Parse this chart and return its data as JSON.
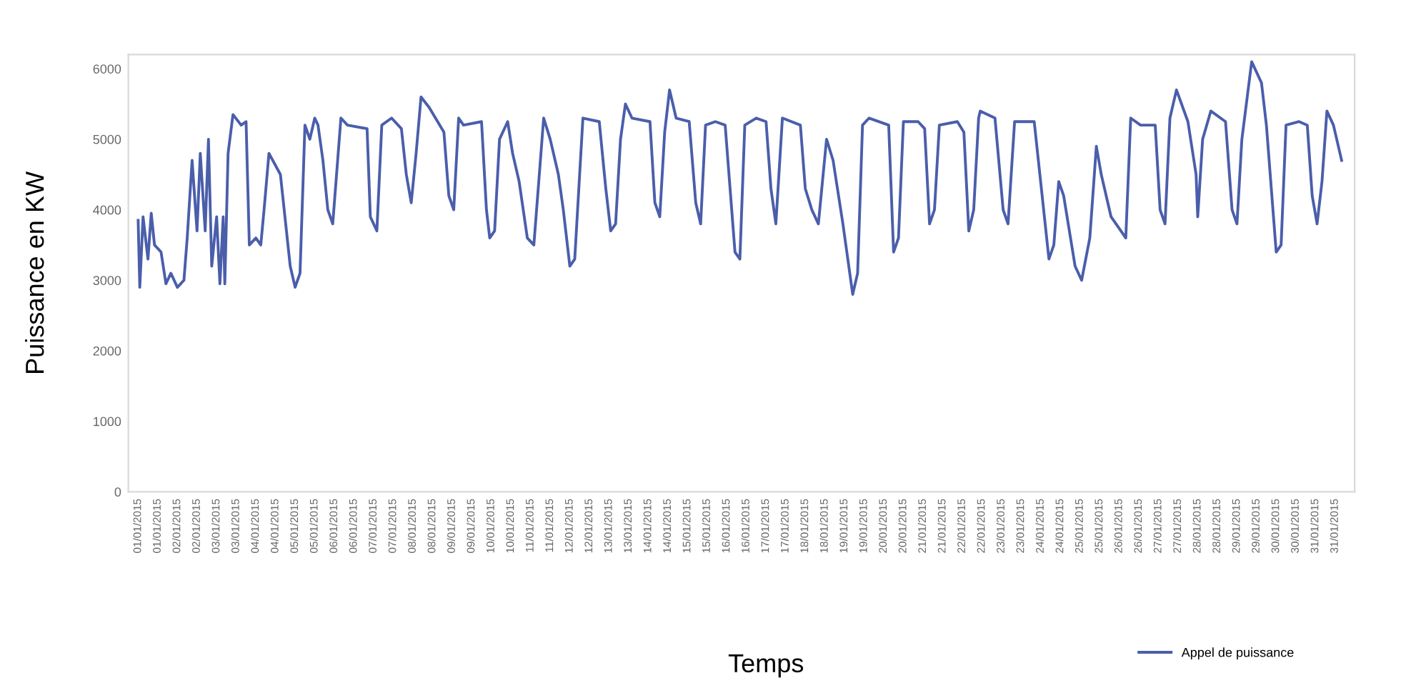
{
  "chart_data": {
    "type": "line",
    "xlabel": "Temps",
    "ylabel": "Puissance en KW",
    "xlim": [
      "2014-12-31T18:00",
      "2015-02-01T00:00"
    ],
    "ylim": [
      0,
      6200
    ],
    "yticks": [
      0,
      1000,
      2000,
      3000,
      4000,
      5000,
      6000
    ],
    "xticks": [
      {
        "value": "2015-01-01T00:00",
        "label": "01/01/2015"
      },
      {
        "value": "2015-01-01T12:00",
        "label": "01/01/2015"
      },
      {
        "value": "2015-01-02T00:00",
        "label": "02/01/2015"
      },
      {
        "value": "2015-01-02T12:00",
        "label": "02/01/2015"
      },
      {
        "value": "2015-01-03T00:00",
        "label": "03/01/2015"
      },
      {
        "value": "2015-01-03T12:00",
        "label": "03/01/2015"
      },
      {
        "value": "2015-01-04T00:00",
        "label": "04/01/2015"
      },
      {
        "value": "2015-01-04T12:00",
        "label": "04/01/2015"
      },
      {
        "value": "2015-01-05T00:00",
        "label": "05/01/2015"
      },
      {
        "value": "2015-01-05T12:00",
        "label": "05/01/2015"
      },
      {
        "value": "2015-01-06T00:00",
        "label": "06/01/2015"
      },
      {
        "value": "2015-01-06T12:00",
        "label": "06/01/2015"
      },
      {
        "value": "2015-01-07T00:00",
        "label": "07/01/2015"
      },
      {
        "value": "2015-01-07T12:00",
        "label": "07/01/2015"
      },
      {
        "value": "2015-01-08T00:00",
        "label": "08/01/2015"
      },
      {
        "value": "2015-01-08T12:00",
        "label": "08/01/2015"
      },
      {
        "value": "2015-01-09T00:00",
        "label": "09/01/2015"
      },
      {
        "value": "2015-01-09T12:00",
        "label": "09/01/2015"
      },
      {
        "value": "2015-01-10T00:00",
        "label": "10/01/2015"
      },
      {
        "value": "2015-01-10T12:00",
        "label": "10/01/2015"
      },
      {
        "value": "2015-01-11T00:00",
        "label": "11/01/2015"
      },
      {
        "value": "2015-01-11T12:00",
        "label": "11/01/2015"
      },
      {
        "value": "2015-01-12T00:00",
        "label": "12/01/2015"
      },
      {
        "value": "2015-01-12T12:00",
        "label": "12/01/2015"
      },
      {
        "value": "2015-01-13T00:00",
        "label": "13/01/2015"
      },
      {
        "value": "2015-01-13T12:00",
        "label": "13/01/2015"
      },
      {
        "value": "2015-01-14T00:00",
        "label": "14/01/2015"
      },
      {
        "value": "2015-01-14T12:00",
        "label": "14/01/2015"
      },
      {
        "value": "2015-01-15T00:00",
        "label": "15/01/2015"
      },
      {
        "value": "2015-01-15T12:00",
        "label": "15/01/2015"
      },
      {
        "value": "2015-01-16T00:00",
        "label": "16/01/2015"
      },
      {
        "value": "2015-01-16T12:00",
        "label": "16/01/2015"
      },
      {
        "value": "2015-01-17T00:00",
        "label": "17/01/2015"
      },
      {
        "value": "2015-01-17T12:00",
        "label": "17/01/2015"
      },
      {
        "value": "2015-01-18T00:00",
        "label": "18/01/2015"
      },
      {
        "value": "2015-01-18T12:00",
        "label": "18/01/2015"
      },
      {
        "value": "2015-01-19T00:00",
        "label": "19/01/2015"
      },
      {
        "value": "2015-01-19T12:00",
        "label": "19/01/2015"
      },
      {
        "value": "2015-01-20T00:00",
        "label": "20/01/2015"
      },
      {
        "value": "2015-01-20T12:00",
        "label": "20/01/2015"
      },
      {
        "value": "2015-01-21T00:00",
        "label": "21/01/2015"
      },
      {
        "value": "2015-01-21T12:00",
        "label": "21/01/2015"
      },
      {
        "value": "2015-01-22T00:00",
        "label": "22/01/2015"
      },
      {
        "value": "2015-01-22T12:00",
        "label": "22/01/2015"
      },
      {
        "value": "2015-01-23T00:00",
        "label": "23/01/2015"
      },
      {
        "value": "2015-01-23T12:00",
        "label": "23/01/2015"
      },
      {
        "value": "2015-01-24T00:00",
        "label": "24/01/2015"
      },
      {
        "value": "2015-01-24T12:00",
        "label": "24/01/2015"
      },
      {
        "value": "2015-01-25T00:00",
        "label": "25/01/2015"
      },
      {
        "value": "2015-01-25T12:00",
        "label": "25/01/2015"
      },
      {
        "value": "2015-01-26T00:00",
        "label": "26/01/2015"
      },
      {
        "value": "2015-01-26T12:00",
        "label": "26/01/2015"
      },
      {
        "value": "2015-01-27T00:00",
        "label": "27/01/2015"
      },
      {
        "value": "2015-01-27T12:00",
        "label": "27/01/2015"
      },
      {
        "value": "2015-01-28T00:00",
        "label": "28/01/2015"
      },
      {
        "value": "2015-01-28T12:00",
        "label": "28/01/2015"
      },
      {
        "value": "2015-01-29T00:00",
        "label": "29/01/2015"
      },
      {
        "value": "2015-01-29T12:00",
        "label": "29/01/2015"
      },
      {
        "value": "2015-01-30T00:00",
        "label": "30/01/2015"
      },
      {
        "value": "2015-01-30T12:00",
        "label": "30/01/2015"
      },
      {
        "value": "2015-01-31T00:00",
        "label": "31/01/2015"
      },
      {
        "value": "2015-01-31T12:00",
        "label": "31/01/2015"
      }
    ],
    "grid": false,
    "legend": "bottom right",
    "marker": "none",
    "line_style": "solid",
    "series": [
      {
        "name": "Appel de puissance",
        "color": "#4a5eab",
        "x": [
          "2015-01-01T00:00",
          "2015-01-01T01:00",
          "2015-01-01T03:00",
          "2015-01-01T06:00",
          "2015-01-01T08:00",
          "2015-01-01T10:00",
          "2015-01-01T14:00",
          "2015-01-01T17:00",
          "2015-01-01T20:00",
          "2015-01-02T00:00",
          "2015-01-02T04:00",
          "2015-01-02T06:00",
          "2015-01-02T09:00",
          "2015-01-02T12:00",
          "2015-01-02T14:00",
          "2015-01-02T17:00",
          "2015-01-02T19:00",
          "2015-01-02T21:00",
          "2015-01-03T00:00",
          "2015-01-03T02:00",
          "2015-01-03T04:00",
          "2015-01-03T05:00",
          "2015-01-03T07:00",
          "2015-01-03T10:00",
          "2015-01-03T15:00",
          "2015-01-03T18:00",
          "2015-01-03T20:00",
          "2015-01-04T00:00",
          "2015-01-04T03:00",
          "2015-01-04T05:00",
          "2015-01-04T08:00",
          "2015-01-04T15:00",
          "2015-01-04T21:00",
          "2015-01-05T00:00",
          "2015-01-05T03:00",
          "2015-01-05T06:00",
          "2015-01-05T09:00",
          "2015-01-05T12:00",
          "2015-01-05T14:00",
          "2015-01-05T17:00",
          "2015-01-05T20:00",
          "2015-01-05T23:00",
          "2015-01-06T04:00",
          "2015-01-06T08:00",
          "2015-01-06T20:00",
          "2015-01-06T22:00",
          "2015-01-07T02:00",
          "2015-01-07T05:00",
          "2015-01-07T11:00",
          "2015-01-07T17:00",
          "2015-01-07T20:00",
          "2015-01-07T23:00",
          "2015-01-08T02:00",
          "2015-01-08T05:00",
          "2015-01-08T10:00",
          "2015-01-08T19:00",
          "2015-01-08T22:00",
          "2015-01-09T01:00",
          "2015-01-09T04:00",
          "2015-01-09T07:00",
          "2015-01-09T18:00",
          "2015-01-09T21:00",
          "2015-01-09T23:00",
          "2015-01-10T02:00",
          "2015-01-10T05:00",
          "2015-01-10T10:00",
          "2015-01-10T13:00",
          "2015-01-10T17:00",
          "2015-01-10T22:00",
          "2015-01-11T02:00",
          "2015-01-11T08:00",
          "2015-01-11T12:00",
          "2015-01-11T17:00",
          "2015-01-11T20:00",
          "2015-01-12T00:00",
          "2015-01-12T03:00",
          "2015-01-12T08:00",
          "2015-01-12T18:00",
          "2015-01-12T22:00",
          "2015-01-13T01:00",
          "2015-01-13T04:00",
          "2015-01-13T07:00",
          "2015-01-13T10:00",
          "2015-01-13T14:00",
          "2015-01-14T01:00",
          "2015-01-14T04:00",
          "2015-01-14T07:00",
          "2015-01-14T10:00",
          "2015-01-14T13:00",
          "2015-01-14T17:00",
          "2015-01-15T01:00",
          "2015-01-15T05:00",
          "2015-01-15T08:00",
          "2015-01-15T11:00",
          "2015-01-15T17:00",
          "2015-01-15T23:00",
          "2015-01-16T05:00",
          "2015-01-16T08:00",
          "2015-01-16T11:00",
          "2015-01-16T18:00",
          "2015-01-17T00:00",
          "2015-01-17T03:00",
          "2015-01-17T06:00",
          "2015-01-17T10:00",
          "2015-01-17T21:00",
          "2015-01-18T00:00",
          "2015-01-18T04:00",
          "2015-01-18T08:00",
          "2015-01-18T13:00",
          "2015-01-18T17:00",
          "2015-01-18T23:00",
          "2015-01-19T05:00",
          "2015-01-19T08:00",
          "2015-01-19T11:00",
          "2015-01-19T15:00",
          "2015-01-20T03:00",
          "2015-01-20T06:00",
          "2015-01-20T09:00",
          "2015-01-20T12:00",
          "2015-01-20T21:00",
          "2015-01-21T01:00",
          "2015-01-21T04:00",
          "2015-01-21T07:00",
          "2015-01-21T10:00",
          "2015-01-21T21:00",
          "2015-01-22T01:00",
          "2015-01-22T04:00",
          "2015-01-22T07:00",
          "2015-01-22T10:00",
          "2015-01-22T11:00",
          "2015-01-22T20:00",
          "2015-01-23T01:00",
          "2015-01-23T04:00",
          "2015-01-23T08:00",
          "2015-01-23T20:00",
          "2015-01-23T23:00",
          "2015-01-24T05:00",
          "2015-01-24T08:00",
          "2015-01-24T11:00",
          "2015-01-24T14:00",
          "2015-01-24T21:00",
          "2015-01-25T01:00",
          "2015-01-25T06:00",
          "2015-01-25T10:00",
          "2015-01-25T13:00",
          "2015-01-25T19:00",
          "2015-01-26T01:00",
          "2015-01-26T04:00",
          "2015-01-26T07:00",
          "2015-01-26T13:00",
          "2015-01-26T22:00",
          "2015-01-27T01:00",
          "2015-01-27T04:00",
          "2015-01-27T07:00",
          "2015-01-27T11:00",
          "2015-01-27T18:00",
          "2015-01-27T23:00",
          "2015-01-28T00:00",
          "2015-01-28T03:00",
          "2015-01-28T08:00",
          "2015-01-28T17:00",
          "2015-01-28T21:00",
          "2015-01-29T00:00",
          "2015-01-29T03:00",
          "2015-01-29T09:00",
          "2015-01-29T15:00",
          "2015-01-29T18:00",
          "2015-01-30T00:00",
          "2015-01-30T03:00",
          "2015-01-30T06:00",
          "2015-01-30T14:00",
          "2015-01-30T19:00",
          "2015-01-30T22:00",
          "2015-01-31T01:00",
          "2015-01-31T04:00",
          "2015-01-31T07:00",
          "2015-01-31T11:00",
          "2015-01-31T16:00"
        ],
        "values": [
          3850,
          2900,
          3900,
          3300,
          3950,
          3500,
          3400,
          2950,
          3100,
          2900,
          3000,
          3600,
          4700,
          3700,
          4800,
          3700,
          5000,
          3200,
          3900,
          2950,
          3900,
          2950,
          4800,
          5350,
          5200,
          5250,
          3500,
          3600,
          3500,
          4000,
          4800,
          4500,
          3200,
          2900,
          3100,
          5200,
          5000,
          5300,
          5200,
          4700,
          4000,
          3800,
          5300,
          5200,
          5150,
          3900,
          3700,
          5200,
          5300,
          5150,
          4500,
          4100,
          4800,
          5600,
          5450,
          5100,
          4200,
          4000,
          5300,
          5200,
          5250,
          4000,
          3600,
          3700,
          5000,
          5250,
          4800,
          4400,
          3600,
          3500,
          5300,
          5000,
          4500,
          4000,
          3200,
          3300,
          5300,
          5250,
          4300,
          3700,
          3800,
          5000,
          5500,
          5300,
          5250,
          4100,
          3900,
          5100,
          5700,
          5300,
          5250,
          4100,
          3800,
          5200,
          5250,
          5200,
          3400,
          3300,
          5200,
          5300,
          5250,
          4300,
          3800,
          5300,
          5200,
          4300,
          4000,
          3800,
          5000,
          4700,
          3800,
          2800,
          3100,
          5200,
          5300,
          5200,
          3400,
          3600,
          5250,
          5250,
          5150,
          3800,
          4000,
          5200,
          5250,
          5100,
          3700,
          4000,
          5300,
          5400,
          5300,
          4000,
          3800,
          5250,
          5250,
          4600,
          3300,
          3500,
          4400,
          4200,
          3200,
          3000,
          3600,
          4900,
          4500,
          3900,
          3700,
          3600,
          5300,
          5200,
          5200,
          4000,
          3800,
          5300,
          5700,
          5250,
          4500,
          3900,
          5000,
          5400,
          5250,
          4000,
          3800,
          5000,
          6100,
          5800,
          5200,
          3400,
          3500,
          5200,
          5250,
          5200,
          4200,
          3800,
          4400,
          5400,
          5200,
          4700
        ]
      }
    ]
  }
}
